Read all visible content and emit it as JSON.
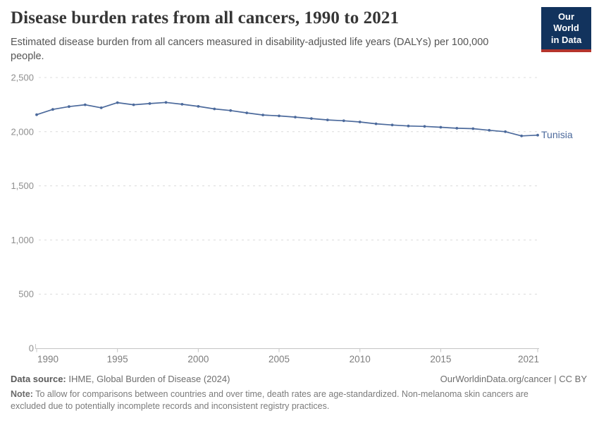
{
  "header": {
    "title": "Disease burden rates from all cancers, 1990 to 2021",
    "subtitle": "Estimated disease burden from all cancers measured in disability-adjusted life years (DALYs) per 100,000 people.",
    "logo": {
      "line1": "Our World",
      "line2": "in Data",
      "bg_color": "#12335d",
      "accent_color": "#b5342c"
    }
  },
  "chart_data": {
    "type": "line",
    "title": "Disease burden rates from all cancers, 1990 to 2021",
    "xlabel": "",
    "ylabel": "DALYs per 100,000 people",
    "x": [
      1990,
      1991,
      1992,
      1993,
      1994,
      1995,
      1996,
      1997,
      1998,
      1999,
      2000,
      2001,
      2002,
      2003,
      2004,
      2005,
      2006,
      2007,
      2008,
      2009,
      2010,
      2011,
      2012,
      2013,
      2014,
      2015,
      2016,
      2017,
      2018,
      2019,
      2020,
      2021
    ],
    "series": [
      {
        "name": "Tunisia",
        "color": "#4c6a9c",
        "values": [
          2157,
          2206,
          2232,
          2249,
          2221,
          2268,
          2249,
          2260,
          2270,
          2253,
          2234,
          2210,
          2195,
          2174,
          2154,
          2146,
          2135,
          2122,
          2109,
          2101,
          2090,
          2073,
          2062,
          2053,
          2049,
          2041,
          2032,
          2028,
          2013,
          2000,
          1961,
          1968
        ]
      }
    ],
    "ylim": [
      0,
      2500
    ],
    "yticks": [
      0,
      500,
      1000,
      1500,
      2000,
      2500
    ],
    "ytick_labels": [
      "0",
      "500",
      "1,000",
      "1,500",
      "2,000",
      "2,500"
    ],
    "xticks": [
      1990,
      1995,
      2000,
      2005,
      2010,
      2015,
      2021
    ],
    "grid": "horizontal-dashed",
    "legend_position": "end-of-line",
    "grid_color": "#dcdcdc",
    "axis_color": "#c4c4c4"
  },
  "footer": {
    "source_label": "Data source:",
    "source_text": " IHME, Global Burden of Disease (2024)",
    "link_text": "OurWorldinData.org/cancer | CC BY",
    "note_label": "Note:",
    "note_text": " To allow for comparisons between countries and over time, death rates are age-standardized. Non-melanoma skin cancers are excluded due to potentially incomplete records and inconsistent registry practices."
  }
}
